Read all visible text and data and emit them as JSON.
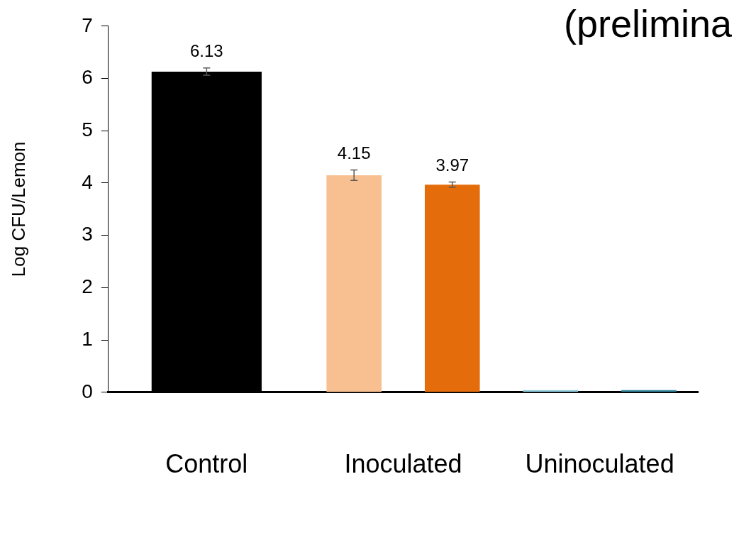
{
  "chart_data": {
    "type": "bar",
    "title": "(prelimina",
    "ylabel": "Log CFU/Lemon",
    "categories": [
      "Control",
      "Inoculated",
      "Uninoculated"
    ],
    "series": [
      {
        "colors": [
          "#000000",
          "#f8c090",
          "#8ecbdc"
        ],
        "values": [
          6.13,
          4.15,
          0
        ],
        "errors": [
          0.07,
          0.1,
          null
        ],
        "value_labels": [
          "6.13",
          "4.15",
          null
        ]
      },
      {
        "colors": [
          null,
          "#e46c0a",
          "#31849b"
        ],
        "values": [
          null,
          3.97,
          0
        ],
        "errors": [
          null,
          0.05,
          null
        ],
        "value_labels": [
          null,
          "3.97",
          null
        ]
      }
    ],
    "ylim": [
      0,
      7
    ],
    "yticks": [
      0,
      1,
      2,
      3,
      4,
      5,
      6,
      7
    ],
    "grid": false,
    "legend": false
  }
}
